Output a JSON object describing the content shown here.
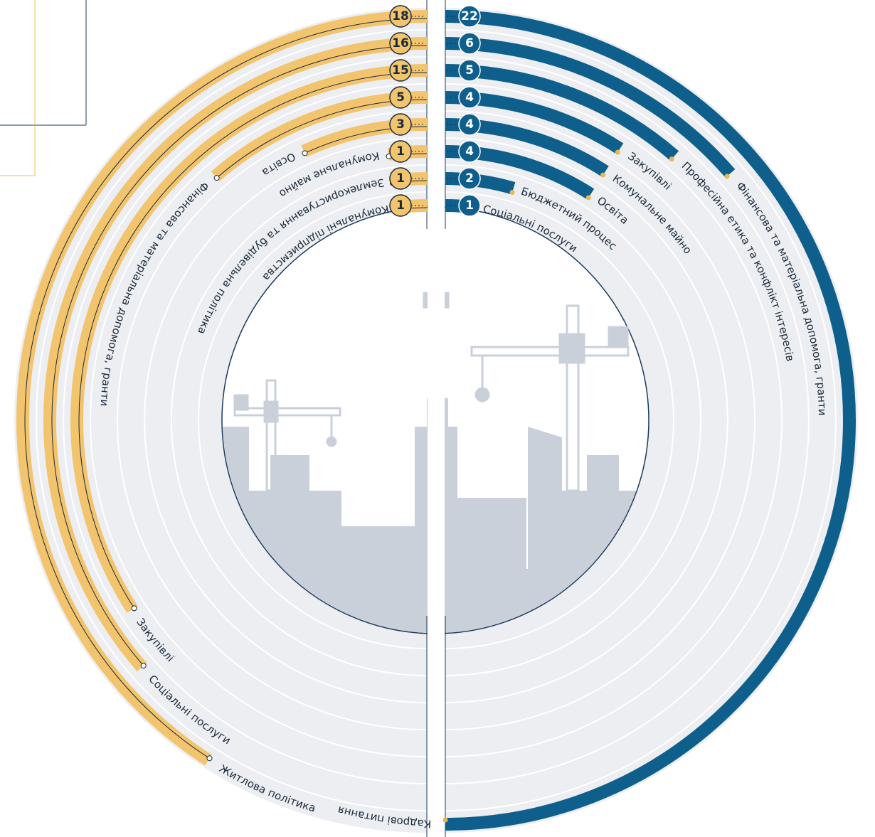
{
  "chart_data": {
    "type": "radial-bar",
    "series": [
      {
        "side": "left",
        "color": "#f2c46d",
        "categories": [
          "Житлова політика",
          "Соціальні послуги",
          "Закупівлі",
          "Фінансова та матеріальна допомога, гранти",
          "Освіта",
          "Комунальне майно",
          "Землекористування та будівельна політика",
          "Комунальні підприємства"
        ],
        "values": [
          18,
          16,
          15,
          5,
          3,
          1,
          1,
          1
        ]
      },
      {
        "side": "right",
        "color": "#0f5f8c",
        "categories": [
          "Кадрові питання",
          "Фінансова та матеріальна допомога, гранти",
          "Професійна етика та конфлікт інтересів",
          "Закупівлі",
          "Комунальне майно",
          "Освіта",
          "Бюджетний процес",
          "Соціальні послуги"
        ],
        "values": [
          22,
          6,
          5,
          4,
          4,
          4,
          2,
          1
        ]
      }
    ]
  }
}
